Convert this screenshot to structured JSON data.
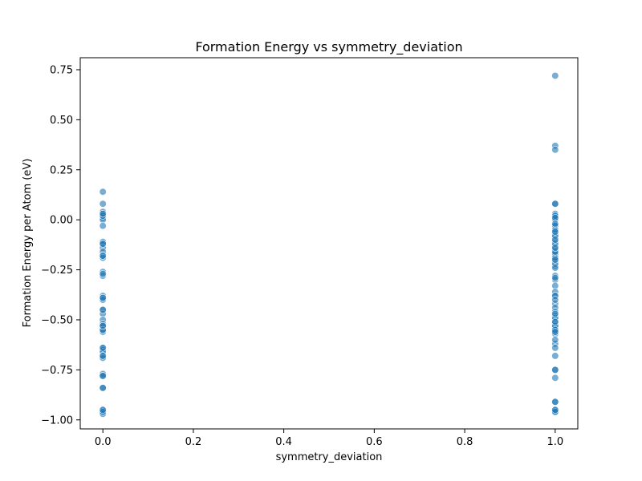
{
  "chart_data": {
    "type": "scatter",
    "title": "Formation Energy vs symmetry_deviation",
    "xlabel": "symmetry_deviation",
    "ylabel": "Formation Energy per Atom (eV)",
    "xlim": [
      -0.05,
      1.05
    ],
    "ylim": [
      -1.045,
      0.81
    ],
    "xticks": [
      0.0,
      0.2,
      0.4,
      0.6,
      0.8,
      1.0
    ],
    "xtick_labels": [
      "0.0",
      "0.2",
      "0.4",
      "0.6",
      "0.8",
      "1.0"
    ],
    "yticks": [
      -1.0,
      -0.75,
      -0.5,
      -0.25,
      0.0,
      0.25,
      0.5,
      0.75
    ],
    "ytick_labels": [
      "−1.00",
      "−0.75",
      "−0.50",
      "−0.25",
      "0.00",
      "0.25",
      "0.50",
      "0.75"
    ],
    "grid": false,
    "legend": "none",
    "point_color": "#1f77b4",
    "series": [
      {
        "x": [
          0,
          0,
          0,
          0,
          0,
          0,
          0,
          0,
          0,
          0,
          0,
          0,
          0,
          0,
          0,
          0,
          0,
          0,
          0,
          0,
          0,
          0,
          0,
          0,
          0,
          0,
          0,
          0,
          0,
          0,
          0,
          0,
          0,
          0,
          0,
          0,
          0,
          0,
          0,
          0,
          0,
          0,
          0,
          0,
          0,
          0,
          0,
          0,
          0,
          0,
          0,
          0
        ],
        "y": [
          0.14,
          0.08,
          0.04,
          0.03,
          0.02,
          0.01,
          0.0,
          -0.03,
          -0.11,
          -0.12,
          -0.14,
          -0.16,
          -0.18,
          -0.19,
          -0.26,
          -0.28,
          -0.38,
          -0.39,
          -0.4,
          -0.45,
          -0.47,
          -0.5,
          -0.52,
          -0.53,
          -0.55,
          -0.56,
          -0.64,
          -0.65,
          -0.66,
          -0.68,
          -0.69,
          -0.77,
          -0.78,
          -0.84,
          -0.95,
          -0.96,
          -0.97,
          -0.55,
          -0.12,
          0.02,
          -0.78,
          -0.84,
          -0.96,
          -0.68,
          -0.53,
          -0.45,
          -0.27,
          -0.18,
          0.03,
          -0.64,
          -0.39,
          -0.95
        ]
      },
      {
        "x": [
          1,
          1,
          1,
          1,
          1,
          1,
          1,
          1,
          1,
          1,
          1,
          1,
          1,
          1,
          1,
          1,
          1,
          1,
          1,
          1,
          1,
          1,
          1,
          1,
          1,
          1,
          1,
          1,
          1,
          1,
          1,
          1,
          1,
          1,
          1,
          1,
          1,
          1,
          1,
          1,
          1,
          1,
          1,
          1,
          1,
          1,
          1,
          1,
          1,
          1,
          1,
          1,
          1,
          1,
          1,
          1,
          1,
          1,
          1,
          1,
          1,
          1,
          1,
          1,
          1,
          1,
          1,
          1,
          1,
          1,
          1,
          1,
          1,
          1,
          1,
          1,
          1,
          1,
          1,
          1
        ],
        "y": [
          0.72,
          0.37,
          0.35,
          0.08,
          0.03,
          0.02,
          0.01,
          0.0,
          -0.03,
          -0.05,
          -0.06,
          -0.07,
          -0.08,
          -0.09,
          -0.11,
          -0.13,
          -0.14,
          -0.15,
          -0.17,
          -0.18,
          -0.19,
          -0.2,
          -0.21,
          -0.23,
          -0.28,
          -0.3,
          -0.33,
          -0.36,
          -0.38,
          -0.42,
          -0.44,
          -0.46,
          -0.48,
          -0.5,
          -0.51,
          -0.52,
          -0.53,
          -0.54,
          -0.55,
          -0.56,
          -0.57,
          -0.62,
          -0.64,
          -0.68,
          -0.75,
          -0.79,
          -0.91,
          -0.95,
          -0.96,
          -0.08,
          -0.17,
          -0.22,
          -0.49,
          -0.53,
          0.08,
          -0.03,
          -0.91,
          -0.96,
          -0.75,
          -0.38,
          -0.19,
          -0.12,
          -0.05,
          0.02,
          -0.55,
          -0.6,
          -0.29,
          -0.1,
          -0.16,
          -0.4,
          -0.56,
          -0.95,
          -0.06,
          0.01,
          -0.2,
          -0.47,
          -0.51,
          -0.24,
          -0.14,
          -0.02
        ]
      }
    ]
  }
}
